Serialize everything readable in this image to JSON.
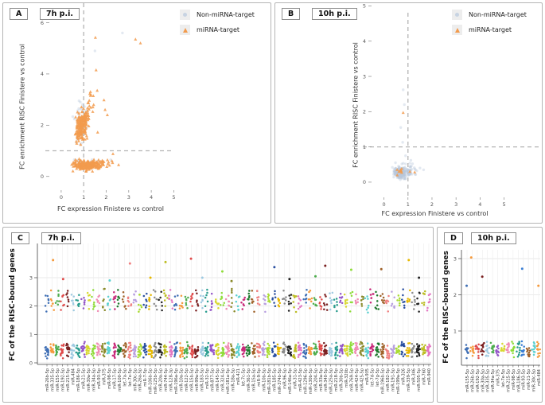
{
  "figure": {
    "background": "#ffffff",
    "panel_border": "#b5b5b5"
  },
  "colors": {
    "mirna_target": "#f29b4d",
    "non_mirna_target": "#b9c9dd",
    "dashed_line": "#b3b3b3",
    "axis_text": "#555555",
    "palette": [
      "#3f6fb5",
      "#f59a3c",
      "#4fae4f",
      "#e04b4b",
      "#7a2020",
      "#9ecae1",
      "#2a9d8f",
      "#9455c8",
      "#d8d830",
      "#8fdc3a",
      "#f08cb4",
      "#8a8a2a",
      "#5ad0d0",
      "#c82a7a",
      "#1f7a2e",
      "#a0622a",
      "#f08080",
      "#b89fe0",
      "#aadc32",
      "#2a4fa0",
      "#e6b800",
      "#8c8c8c",
      "#222222",
      "#bcbd22",
      "#e377c2"
    ]
  },
  "chart_data": [
    {
      "id": "A",
      "type": "scatter",
      "panel_label": "A",
      "title": "7h p.i.",
      "xlabel": "FC expression Finistere vs control",
      "ylabel": "FC enrichment RISC Finistere vs control",
      "xticks": [
        0,
        1,
        2,
        3,
        4,
        5
      ],
      "yticks": [
        0,
        2,
        4,
        6
      ],
      "xlim": [
        -0.35,
        5.3
      ],
      "ylim": [
        -0.35,
        6.45
      ],
      "refline_x": 1,
      "refline_y": 1,
      "legend": [
        {
          "label": "Non-miRNA-target",
          "marker": "circle"
        },
        {
          "label": "miRNA-target",
          "marker": "triangle"
        }
      ],
      "clusters": [
        {
          "series": "non",
          "x": 0.85,
          "y": 2.0,
          "sx": 0.14,
          "sy": 0.4,
          "n": 45
        },
        {
          "series": "non",
          "x": 1.05,
          "y": 0.48,
          "sx": 0.3,
          "sy": 0.09,
          "n": 30
        },
        {
          "series": "mi",
          "x": 0.88,
          "y": 1.9,
          "sx": 0.12,
          "sy": 0.26,
          "n": 150
        },
        {
          "series": "mi",
          "x": 1.05,
          "y": 2.35,
          "sx": 0.12,
          "sy": 0.22,
          "n": 50
        },
        {
          "series": "mi",
          "x": 1.3,
          "y": 2.75,
          "sx": 0.09,
          "sy": 0.3,
          "n": 14
        },
        {
          "series": "mi",
          "x": 1.15,
          "y": 0.45,
          "sx": 0.3,
          "sy": 0.09,
          "n": 210
        },
        {
          "series": "mi",
          "x": 1.85,
          "y": 0.5,
          "sx": 0.22,
          "sy": 0.08,
          "n": 25
        }
      ],
      "outliers": [
        {
          "series": "non",
          "x": 2.72,
          "y": 5.6
        },
        {
          "series": "non",
          "x": 1.5,
          "y": 4.9
        },
        {
          "series": "non",
          "x": 0.85,
          "y": 2.9
        },
        {
          "series": "non",
          "x": 2.2,
          "y": 0.65
        },
        {
          "series": "mi",
          "x": 1.52,
          "y": 5.42
        },
        {
          "series": "mi",
          "x": 3.3,
          "y": 5.35
        },
        {
          "series": "mi",
          "x": 3.52,
          "y": 5.2
        },
        {
          "series": "mi",
          "x": 1.55,
          "y": 4.15
        },
        {
          "series": "mi",
          "x": 1.6,
          "y": 3.35
        },
        {
          "series": "mi",
          "x": 1.3,
          "y": 3.3
        },
        {
          "series": "mi",
          "x": 1.9,
          "y": 2.98
        },
        {
          "series": "mi",
          "x": 1.95,
          "y": 2.6
        },
        {
          "series": "mi",
          "x": 2.05,
          "y": 2.4
        },
        {
          "series": "mi",
          "x": 1.62,
          "y": 1.72
        },
        {
          "series": "mi",
          "x": 2.3,
          "y": 0.88
        },
        {
          "series": "mi",
          "x": 2.55,
          "y": 0.45
        }
      ]
    },
    {
      "id": "B",
      "type": "scatter",
      "panel_label": "B",
      "title": "10h p.i.",
      "xlabel": "FC expression Finistere vs control",
      "ylabel": "FC enrichment RISC Finistere vs control",
      "xticks": [
        0,
        1,
        2,
        3,
        4,
        5
      ],
      "yticks": [
        0,
        1,
        2,
        3,
        4,
        5
      ],
      "xlim": [
        -0.35,
        5.3
      ],
      "ylim": [
        -0.25,
        5.2
      ],
      "refline_x": 1,
      "refline_y": 1,
      "legend": [
        {
          "label": "Non-miRNA-target",
          "marker": "circle"
        },
        {
          "label": "miRNA-target",
          "marker": "triangle"
        }
      ],
      "clusters": [
        {
          "series": "non",
          "x": 0.68,
          "y": 0.27,
          "sx": 0.13,
          "sy": 0.07,
          "n": 220
        },
        {
          "series": "non",
          "x": 0.92,
          "y": 0.33,
          "sx": 0.2,
          "sy": 0.1,
          "n": 60
        },
        {
          "series": "mi",
          "x": 0.68,
          "y": 0.3,
          "sx": 0.08,
          "sy": 0.05,
          "n": 8
        }
      ],
      "outliers": [
        {
          "series": "non",
          "x": 0.8,
          "y": 2.62
        },
        {
          "series": "non",
          "x": 0.85,
          "y": 2.2
        },
        {
          "series": "non",
          "x": 0.7,
          "y": 1.55
        },
        {
          "series": "non",
          "x": 0.78,
          "y": 1.13
        },
        {
          "series": "non",
          "x": 0.9,
          "y": 0.75
        },
        {
          "series": "non",
          "x": 1.12,
          "y": 0.62
        },
        {
          "series": "non",
          "x": 0.48,
          "y": 0.55
        },
        {
          "series": "non",
          "x": 1.5,
          "y": 0.4
        },
        {
          "series": "non",
          "x": 1.65,
          "y": 0.35
        },
        {
          "series": "mi",
          "x": 0.8,
          "y": 1.97
        },
        {
          "series": "mi",
          "x": 1.08,
          "y": 0.3
        },
        {
          "series": "mi",
          "x": 1.28,
          "y": 0.28
        },
        {
          "series": "mi",
          "x": 0.55,
          "y": 0.35
        }
      ]
    },
    {
      "id": "C",
      "type": "strip",
      "panel_label": "C",
      "title": "7h p.i.",
      "ylabel": "FC of the RISC-bound genes",
      "yticks": [
        0,
        1,
        2,
        3
      ],
      "ylim": [
        0,
        4.1
      ],
      "categories": [
        "miR-26b-5p",
        "miR-335-5p",
        "miR-155-5p",
        "miR-192-5p",
        "miR-215-5p",
        "miR-484",
        "miR-186-5p",
        "miR-21-5p",
        "miR-30a-5p",
        "miR-34a-5p",
        "miR-93-5p",
        "miR-375",
        "miR-98-5p",
        "miR-17-5p",
        "miR-100-5p",
        "let-7a-5p",
        "let-7e-5p",
        "miR-30c-5p",
        "miR-26a-5p",
        "miR-7-5p",
        "miR-106b-5p",
        "miR-125b-5p",
        "miR-20a-5p",
        "miR-744-5p",
        "miR-128-3p",
        "miR-196a-5p",
        "miR-10a-5p",
        "miR-122-5p",
        "miR-15b-5p",
        "miR-99a-5p",
        "miR-183-5p",
        "miR-32-5p",
        "miR-877-5p",
        "miR-145-5p",
        "miR-324-5p",
        "miR-181a-5p",
        "miR-18a-5p",
        "miR-421",
        "let-7c-5p",
        "miR-361-5p",
        "miR-15a-5p",
        "miR-9-5p",
        "miR-10b-5p",
        "miR-181b-5p",
        "miR-185-5p",
        "miR-374b-5p",
        "miR-96-5p",
        "miR-146a-5p",
        "miR-31-5p",
        "miR-423-5p",
        "miR-1296-5p",
        "miR-130b-5p",
        "miR-204-5p",
        "miR-33a-5p",
        "miR-340-5p",
        "miR-125a-5p",
        "miR-218-5p",
        "miR-30b-5p",
        "miR-320b",
        "miR-769-5p",
        "miR-424-5p",
        "miR-425-5p",
        "miR-935",
        "let-7d-5p",
        "let-7g-5p",
        "miR-196b-5p",
        "miR-182-5p",
        "miR-191-5p",
        "miR-199a-5p",
        "miR-326",
        "miR-339-5p",
        "miR-346",
        "miR-505-5p",
        "miR-760",
        "miR-940"
      ],
      "low_cluster": {
        "n": 16,
        "range": [
          0.13,
          0.75
        ]
      },
      "high_cluster": {
        "n": 7,
        "range": [
          1.75,
          2.65
        ]
      },
      "outliers": [
        {
          "ci": 1,
          "y": 3.62
        },
        {
          "ci": 3,
          "y": 2.95
        },
        {
          "ci": 12,
          "y": 2.9
        },
        {
          "ci": 16,
          "y": 3.5
        },
        {
          "ci": 20,
          "y": 3.0
        },
        {
          "ci": 23,
          "y": 3.55
        },
        {
          "ci": 28,
          "y": 3.67
        },
        {
          "ci": 30,
          "y": 3.0
        },
        {
          "ci": 34,
          "y": 3.22
        },
        {
          "ci": 36,
          "y": 2.88
        },
        {
          "ci": 44,
          "y": 3.37
        },
        {
          "ci": 47,
          "y": 2.95
        },
        {
          "ci": 52,
          "y": 3.05
        },
        {
          "ci": 54,
          "y": 3.42
        },
        {
          "ci": 59,
          "y": 3.28
        },
        {
          "ci": 65,
          "y": 3.3
        },
        {
          "ci": 70,
          "y": 3.62
        },
        {
          "ci": 72,
          "y": 3.0
        }
      ]
    },
    {
      "id": "D",
      "type": "strip",
      "panel_label": "D",
      "title": "10h p.i.",
      "ylabel": "FC of the RISC-bound genes",
      "yticks": [
        1,
        2,
        3
      ],
      "ylim": [
        0.05,
        3.2
      ],
      "categories": [
        "miR-155-5p",
        "miR-26b-5p",
        "miR-192-5p",
        "miR-30a-5p",
        "miR-335-5p",
        "miR-34a-5p",
        "miR-375",
        "let-7e-5p",
        "miR-215-5p",
        "miR-98-5p",
        "miR-186-5p",
        "miR-93-5p",
        "miR-21-5p",
        "miR-30c-5p",
        "miR-484"
      ],
      "colors": [
        "#3f6fb5",
        "#f59a3c",
        "#e04b4b",
        "#7a2020",
        "#9ecae1",
        "#4fae4f",
        "#9455c8",
        "#d8d830",
        "#f08cb4",
        "#8fdc3a",
        "#2a9d8f",
        "#3b7fd4",
        "#a0622a",
        "#5ad0d0",
        "#f59a3c"
      ],
      "low_cluster": {
        "n": 12,
        "range": [
          0.22,
          0.75
        ]
      },
      "high_cluster": null,
      "outliers": [
        {
          "ci": 0,
          "y": 2.25
        },
        {
          "ci": 1,
          "y": 3.03
        },
        {
          "ci": 3,
          "y": 2.5
        },
        {
          "ci": 11,
          "y": 2.72
        },
        {
          "ci": 14,
          "y": 2.25
        }
      ]
    }
  ]
}
